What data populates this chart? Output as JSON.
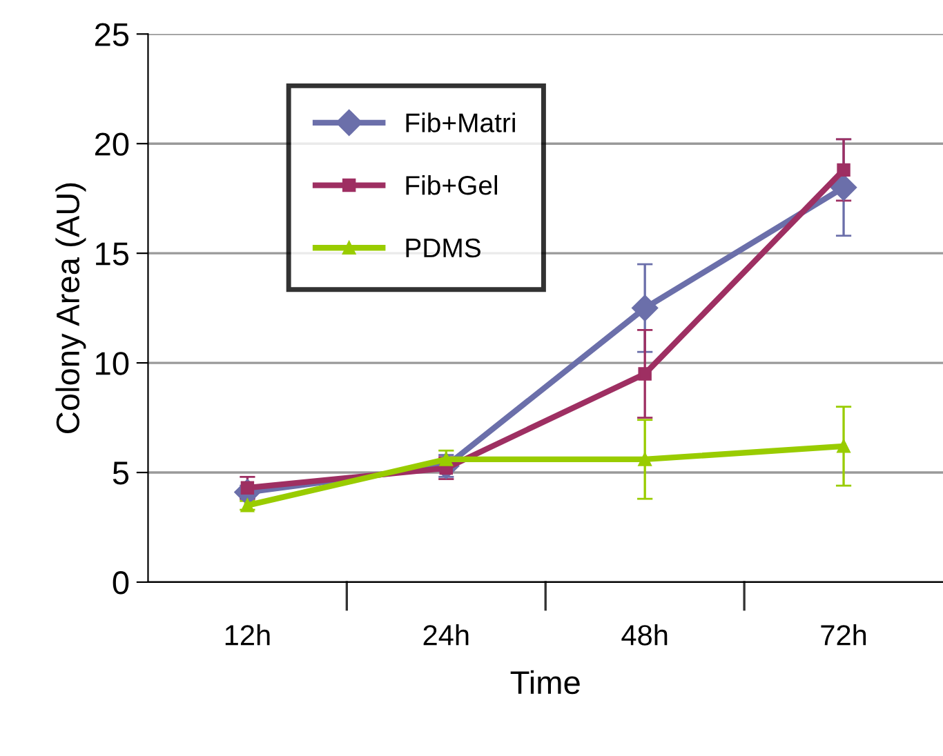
{
  "chart_data": {
    "type": "line",
    "xlabel": "Time",
    "ylabel": "Colony Area (AU)",
    "categories": [
      "12h",
      "24h",
      "48h",
      "72h"
    ],
    "ylim": [
      0,
      25
    ],
    "yticks": [
      0,
      5,
      10,
      15,
      20,
      25
    ],
    "grid": "y",
    "legend": "top left",
    "series": [
      {
        "name": "Fib+Matri",
        "color": "#6b6faa",
        "marker": "diamond",
        "values": [
          4.1,
          5.3,
          12.5,
          18.0
        ],
        "errors": [
          0.3,
          0.5,
          2.0,
          2.2
        ]
      },
      {
        "name": "Fib+Gel",
        "color": "#9e2f62",
        "marker": "square",
        "values": [
          4.3,
          5.2,
          9.5,
          18.8
        ],
        "errors": [
          0.5,
          0.5,
          2.0,
          1.4
        ]
      },
      {
        "name": "PDMS",
        "color": "#99cc00",
        "marker": "triangle",
        "values": [
          3.5,
          5.6,
          5.6,
          6.2
        ],
        "errors": [
          0.2,
          0.4,
          1.8,
          1.8
        ]
      }
    ]
  }
}
